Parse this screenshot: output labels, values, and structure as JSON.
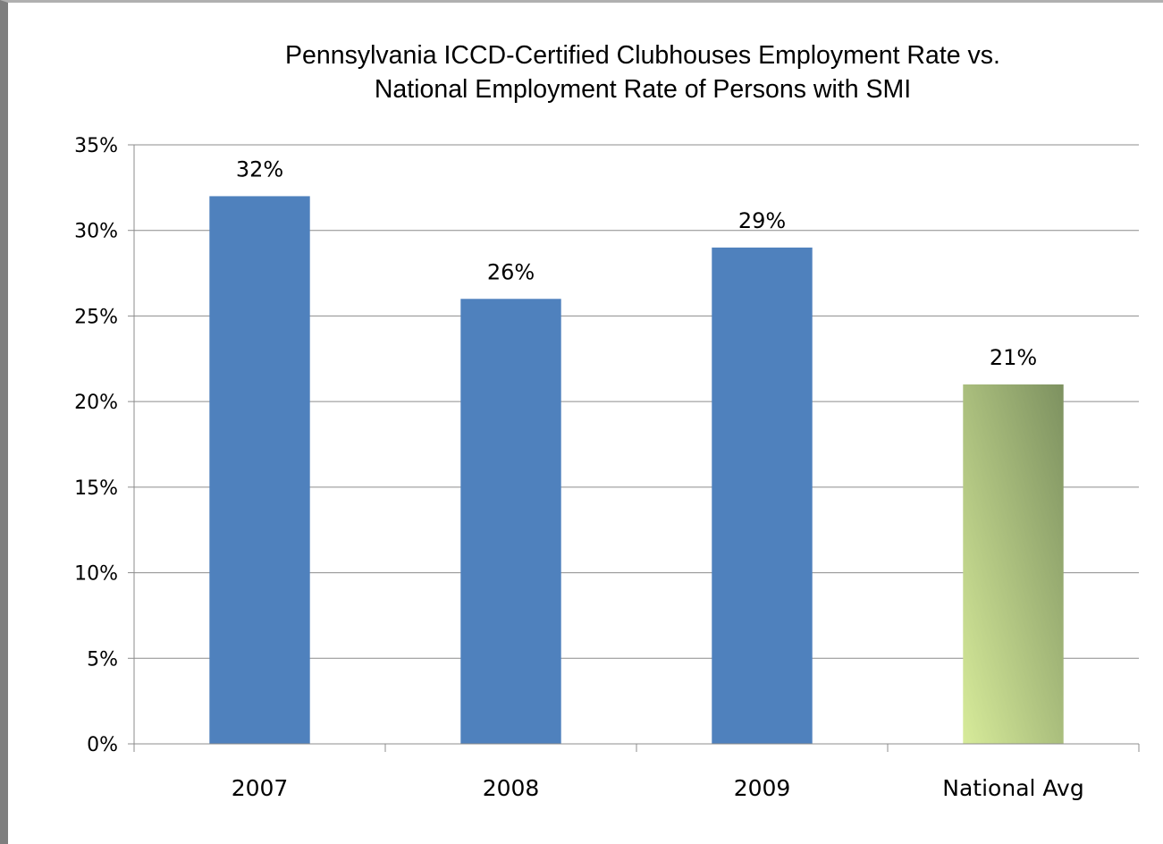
{
  "chart_data": {
    "type": "bar",
    "title_lines": [
      "Pennsylvania ICCD-Certified Clubhouses Employment Rate vs.",
      "National  Employment Rate of Persons with SMI"
    ],
    "categories": [
      "2007",
      "2008",
      "2009",
      "National Avg"
    ],
    "values": [
      32,
      26,
      29,
      21
    ],
    "data_labels": [
      "32%",
      "26%",
      "29%",
      "21%"
    ],
    "yticks": [
      "0%",
      "5%",
      "10%",
      "15%",
      "20%",
      "25%",
      "30%",
      "35%"
    ],
    "ylim": [
      0,
      35
    ],
    "ystep": 5,
    "grid": true,
    "legend": "none",
    "colors": {
      "default_bar": "#4f81bd",
      "national_avg_gradient": [
        "#d7eb9a",
        "#7d9160"
      ]
    }
  }
}
